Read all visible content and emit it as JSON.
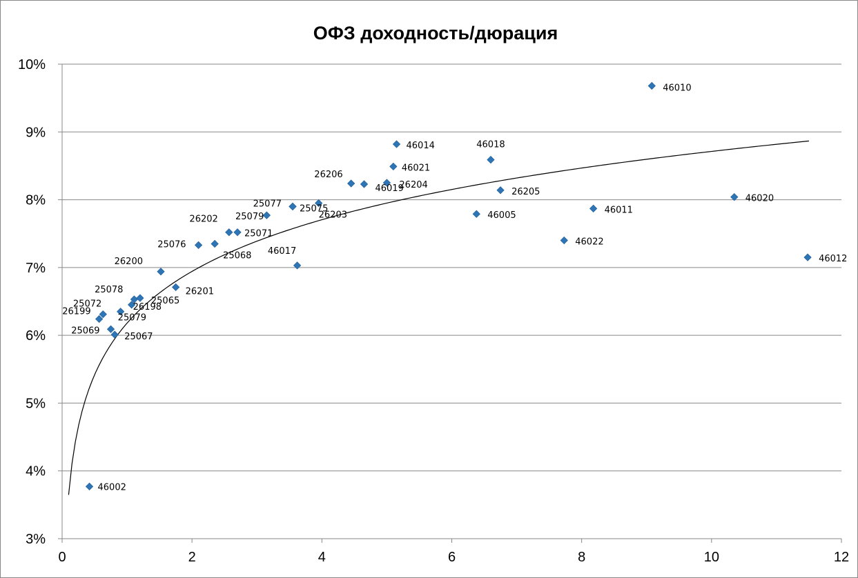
{
  "chart_data": {
    "type": "scatter",
    "title": "ОФЗ доходность/дюрация",
    "xlim": [
      0,
      12
    ],
    "ylim": [
      3,
      10
    ],
    "x_ticks": [
      "0",
      "2",
      "4",
      "6",
      "8",
      "10",
      "12"
    ],
    "y_ticks": [
      "3%",
      "4%",
      "5%",
      "6%",
      "7%",
      "8%",
      "9%",
      "10%"
    ],
    "grid": "horizontal",
    "legend": "none",
    "colors": {
      "marker": "#2E75B6",
      "trendline": "#000000",
      "gridline": "#878787"
    },
    "trendline": {
      "type": "logarithmic",
      "a": 6.18,
      "b": 1.1,
      "x_range": [
        0.1,
        11.5
      ]
    },
    "points": [
      {
        "label": "46002",
        "x": 0.42,
        "y": 3.77
      },
      {
        "label": "26199",
        "x": 0.57,
        "y": 6.24
      },
      {
        "label": "25072",
        "x": 0.63,
        "y": 6.31
      },
      {
        "label": "25069",
        "x": 0.75,
        "y": 6.09
      },
      {
        "label": "25067",
        "x": 0.81,
        "y": 6.01
      },
      {
        "label": "25079",
        "x": 0.9,
        "y": 6.35
      },
      {
        "label": "26198",
        "x": 1.07,
        "y": 6.45
      },
      {
        "label": "25078",
        "x": 1.11,
        "y": 6.53
      },
      {
        "label": "25065",
        "x": 1.2,
        "y": 6.55
      },
      {
        "label": "26200",
        "x": 1.52,
        "y": 6.94
      },
      {
        "label": "26201",
        "x": 1.75,
        "y": 6.71
      },
      {
        "label": "25076",
        "x": 2.1,
        "y": 7.33
      },
      {
        "label": "25068",
        "x": 2.35,
        "y": 7.35
      },
      {
        "label": "26202",
        "x": 2.57,
        "y": 7.52
      },
      {
        "label": "25071",
        "x": 2.7,
        "y": 7.52
      },
      {
        "label": "25079",
        "x": 3.15,
        "y": 7.77
      },
      {
        "label": "25077",
        "x": 3.55,
        "y": 7.9
      },
      {
        "label": "25075",
        "x": 3.55,
        "y": 7.9
      },
      {
        "label": "46017",
        "x": 3.62,
        "y": 7.03
      },
      {
        "label": "26203",
        "x": 3.95,
        "y": 7.95
      },
      {
        "label": "26206",
        "x": 4.45,
        "y": 8.24
      },
      {
        "label": "46019",
        "x": 4.65,
        "y": 8.23
      },
      {
        "label": "26204",
        "x": 5.0,
        "y": 8.25
      },
      {
        "label": "46021",
        "x": 5.1,
        "y": 8.49
      },
      {
        "label": "46014",
        "x": 5.15,
        "y": 8.82
      },
      {
        "label": "46005",
        "x": 6.38,
        "y": 7.79
      },
      {
        "label": "46018",
        "x": 6.6,
        "y": 8.59
      },
      {
        "label": "26205",
        "x": 6.75,
        "y": 8.14
      },
      {
        "label": "46022",
        "x": 7.73,
        "y": 7.4
      },
      {
        "label": "46011",
        "x": 8.18,
        "y": 7.87
      },
      {
        "label": "46010",
        "x": 9.08,
        "y": 9.68
      },
      {
        "label": "46020",
        "x": 10.35,
        "y": 8.04
      },
      {
        "label": "46012",
        "x": 11.48,
        "y": 7.15
      }
    ]
  }
}
